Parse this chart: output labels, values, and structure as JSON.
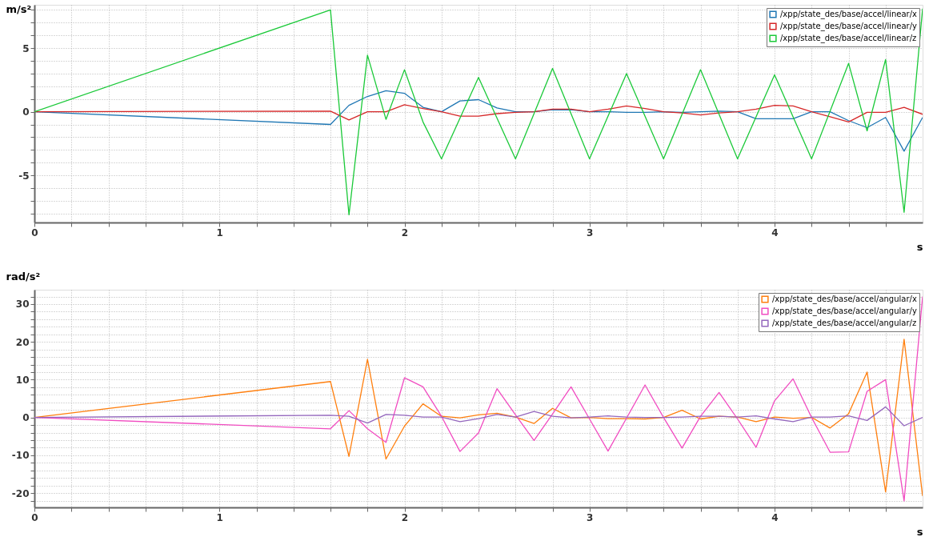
{
  "chart_data": [
    {
      "type": "line",
      "xlabel": "s",
      "ylabel": "m/s²",
      "legend": "top right",
      "grid": true,
      "x": [
        0,
        1.6,
        1.7,
        1.8,
        1.9,
        2.0,
        2.1,
        2.2,
        2.3,
        2.4,
        2.5,
        2.6,
        2.7,
        2.8,
        2.9,
        3.0,
        3.1,
        3.2,
        3.3,
        3.4,
        3.5,
        3.6,
        3.7,
        3.8,
        3.9,
        4.0,
        4.1,
        4.2,
        4.3,
        4.4,
        4.5,
        4.6,
        4.7,
        4.8
      ],
      "series": [
        {
          "name": "/xpp/state_des/base/accel/linear/x",
          "color": "#1f77b4",
          "values": [
            0,
            -1.0,
            0.5,
            1.2,
            1.65,
            1.45,
            0.35,
            0,
            0.85,
            0.95,
            0.3,
            0,
            0,
            0.15,
            0.15,
            0,
            0,
            -0.05,
            -0.05,
            0,
            -0.05,
            0,
            0.05,
            0,
            -0.55,
            -0.55,
            -0.55,
            0,
            0,
            -0.7,
            -1.25,
            -0.45,
            -3.1,
            -0.45
          ]
        },
        {
          "name": "/xpp/state_des/base/accel/linear/y",
          "color": "#d62728",
          "values": [
            0,
            0.05,
            -0.65,
            0,
            0,
            0.55,
            0.25,
            0,
            -0.35,
            -0.35,
            -0.15,
            -0.05,
            0,
            0.2,
            0.2,
            0,
            0.2,
            0.45,
            0.25,
            0,
            -0.1,
            -0.25,
            -0.1,
            0,
            0.2,
            0.5,
            0.45,
            0,
            -0.4,
            -0.8,
            -0.05,
            -0.05,
            0.35,
            -0.2
          ]
        },
        {
          "name": "/xpp/state_des/base/accel/linear/z",
          "color": "#1ac938",
          "x": [
            0,
            1.6,
            1.7,
            1.8,
            1.9,
            2.0,
            2.1,
            2.2,
            2.4,
            2.6,
            2.8,
            3.0,
            3.2,
            3.4,
            3.6,
            3.8,
            4.0,
            4.2,
            4.4,
            4.5,
            4.6,
            4.7,
            4.8
          ],
          "values": [
            0,
            8.0,
            -8.1,
            4.45,
            -0.6,
            3.3,
            -0.8,
            -3.7,
            2.7,
            -3.7,
            3.4,
            -3.7,
            3.0,
            -3.7,
            3.3,
            -3.7,
            2.9,
            -3.7,
            3.8,
            -1.5,
            4.1,
            -7.9,
            8.1
          ]
        }
      ],
      "xlim": [
        0,
        4.8
      ],
      "xticks": [
        0,
        {
          "value": 0.2,
          "label": null
        },
        {
          "value": 0.4,
          "label": null
        },
        {
          "value": 0.6,
          "label": null
        },
        {
          "value": 0.8,
          "label": null
        },
        1,
        {
          "value": 1.2,
          "label": null
        },
        {
          "value": 1.4,
          "label": null
        },
        {
          "value": 1.6,
          "label": null
        },
        {
          "value": 1.8,
          "label": null
        },
        2,
        {
          "value": 2.2,
          "label": null
        },
        {
          "value": 2.4,
          "label": null
        },
        {
          "value": 2.6,
          "label": null
        },
        {
          "value": 2.8,
          "label": null
        },
        3,
        {
          "value": 3.2,
          "label": null
        },
        {
          "value": 3.4,
          "label": null
        },
        {
          "value": 3.6,
          "label": null
        },
        {
          "value": 3.8,
          "label": null
        },
        4,
        {
          "value": 4.2,
          "label": null
        },
        {
          "value": 4.4,
          "label": null
        },
        {
          "value": 4.6,
          "label": null
        }
      ],
      "ylim": [
        -8.7,
        8.4
      ],
      "yticks": [
        {
          "value": -8,
          "label": null
        },
        {
          "value": -7,
          "label": null
        },
        {
          "value": -6,
          "label": null
        },
        -5,
        {
          "value": -4,
          "label": null
        },
        {
          "value": -3,
          "label": null
        },
        {
          "value": -2,
          "label": null
        },
        {
          "value": -1,
          "label": null
        },
        0,
        {
          "value": 1,
          "label": null
        },
        {
          "value": 2,
          "label": null
        },
        {
          "value": 3,
          "label": null
        },
        {
          "value": 4,
          "label": null
        },
        5,
        {
          "value": 6,
          "label": null
        },
        {
          "value": 7,
          "label": null
        },
        {
          "value": 8,
          "label": null
        }
      ]
    },
    {
      "type": "line",
      "xlabel": "s",
      "ylabel": "rad/s²",
      "legend": "top right",
      "grid": true,
      "x": [
        0,
        1.6,
        1.7,
        1.8,
        1.9,
        2.0,
        2.1,
        2.2,
        2.3,
        2.4,
        2.5,
        2.6,
        2.7,
        2.8,
        2.9,
        3.0,
        3.1,
        3.2,
        3.3,
        3.4,
        3.5,
        3.6,
        3.7,
        3.8,
        3.9,
        4.0,
        4.1,
        4.2,
        4.3,
        4.4,
        4.5,
        4.6,
        4.7,
        4.8
      ],
      "series": [
        {
          "name": "/xpp/state_des/base/accel/angular/x",
          "color": "#ff7f0e",
          "values": [
            0,
            9.5,
            -10.3,
            15.4,
            -11.0,
            -2.3,
            3.6,
            0.3,
            -0.1,
            0.7,
            1.1,
            0.1,
            -1.6,
            2.4,
            -0.1,
            0,
            -0.3,
            -0.3,
            -0.4,
            0,
            1.9,
            -0.4,
            0.3,
            0.1,
            -1.1,
            0.1,
            -0.2,
            0,
            -2.8,
            1.0,
            12.0,
            -19.7,
            20.7,
            -20.8
          ]
        },
        {
          "name": "/xpp/state_des/base/accel/angular/y",
          "color": "#f14cc1",
          "values": [
            0,
            -3.0,
            1.8,
            -3.0,
            -6.6,
            10.5,
            8.1,
            0.3,
            -9.0,
            -4.1,
            7.6,
            0.7,
            -6.1,
            0.9,
            8.1,
            -0.4,
            -8.9,
            -0.2,
            8.6,
            0,
            -8.1,
            0.3,
            6.6,
            -0.4,
            -7.9,
            4.4,
            10.2,
            0,
            -9.2,
            -9.1,
            6.9,
            10.0,
            -22.1,
            32.0
          ]
        },
        {
          "name": "/xpp/state_des/base/accel/angular/z",
          "color": "#9467bd",
          "values": [
            0,
            0.6,
            0.3,
            -1.5,
            0.8,
            0.6,
            0.1,
            0.1,
            -1.1,
            -0.3,
            0.8,
            0.1,
            1.6,
            0.3,
            -0.1,
            0.1,
            0.4,
            0.1,
            0,
            0,
            0.1,
            0.3,
            0.3,
            0.1,
            0.4,
            -0.4,
            -1.1,
            0.1,
            0.1,
            0.4,
            -0.8,
            2.8,
            -2.2,
            0
          ]
        }
      ],
      "xlim": [
        0,
        4.8
      ],
      "xticks": [
        0,
        {
          "value": 0.2,
          "label": null
        },
        {
          "value": 0.4,
          "label": null
        },
        {
          "value": 0.6,
          "label": null
        },
        {
          "value": 0.8,
          "label": null
        },
        1,
        {
          "value": 1.2,
          "label": null
        },
        {
          "value": 1.4,
          "label": null
        },
        {
          "value": 1.6,
          "label": null
        },
        {
          "value": 1.8,
          "label": null
        },
        2,
        {
          "value": 2.2,
          "label": null
        },
        {
          "value": 2.4,
          "label": null
        },
        {
          "value": 2.6,
          "label": null
        },
        {
          "value": 2.8,
          "label": null
        },
        3,
        {
          "value": 3.2,
          "label": null
        },
        {
          "value": 3.4,
          "label": null
        },
        {
          "value": 3.6,
          "label": null
        },
        {
          "value": 3.8,
          "label": null
        },
        4,
        {
          "value": 4.2,
          "label": null
        },
        {
          "value": 4.4,
          "label": null
        },
        {
          "value": 4.6,
          "label": null
        }
      ],
      "ylim": [
        -23.8,
        33.8
      ],
      "yticks": [
        {
          "value": -22,
          "label": null
        },
        -20,
        {
          "value": -18,
          "label": null
        },
        {
          "value": -16,
          "label": null
        },
        {
          "value": -14,
          "label": null
        },
        {
          "value": -12,
          "label": null
        },
        -10,
        {
          "value": -8,
          "label": null
        },
        {
          "value": -6,
          "label": null
        },
        {
          "value": -4,
          "label": null
        },
        {
          "value": -2,
          "label": null
        },
        0,
        {
          "value": 2,
          "label": null
        },
        {
          "value": 4,
          "label": null
        },
        {
          "value": 6,
          "label": null
        },
        {
          "value": 8,
          "label": null
        },
        10,
        {
          "value": 12,
          "label": null
        },
        {
          "value": 14,
          "label": null
        },
        {
          "value": 16,
          "label": null
        },
        {
          "value": 18,
          "label": null
        },
        20,
        {
          "value": 22,
          "label": null
        },
        {
          "value": 24,
          "label": null
        },
        {
          "value": 26,
          "label": null
        },
        {
          "value": 28,
          "label": null
        },
        30,
        {
          "value": 32,
          "label": null
        }
      ]
    }
  ]
}
